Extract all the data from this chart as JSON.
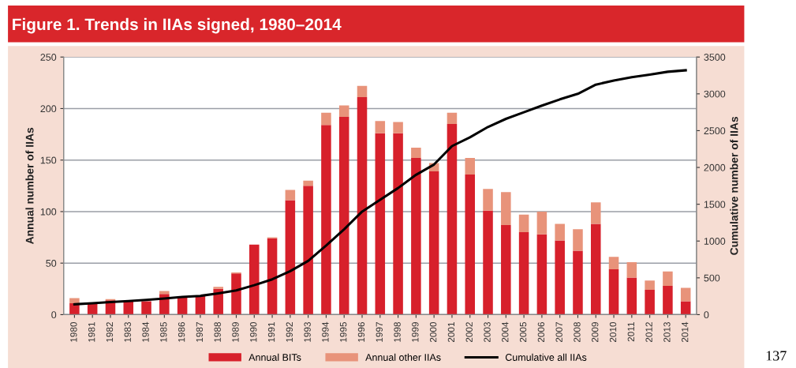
{
  "chart_data": {
    "type": "bar",
    "title": "Figure 1. Trends in IIAs signed, 1980–2014",
    "categories": [
      "1980",
      "1981",
      "1982",
      "1983",
      "1984",
      "1985",
      "1986",
      "1987",
      "1988",
      "1989",
      "1990",
      "1991",
      "1992",
      "1993",
      "1994",
      "1995",
      "1996",
      "1997",
      "1998",
      "1999",
      "2000",
      "2001",
      "2002",
      "2003",
      "2004",
      "2005",
      "2006",
      "2007",
      "2008",
      "2009",
      "2010",
      "2011",
      "2012",
      "2013",
      "2014"
    ],
    "stacked": true,
    "series": [
      {
        "name": "Annual BITs",
        "color": "#d7202b",
        "values": [
          11,
          11,
          14,
          13,
          13,
          20,
          17,
          18,
          25,
          40,
          68,
          74,
          111,
          125,
          184,
          192,
          211,
          176,
          176,
          152,
          139,
          185,
          136,
          101,
          87,
          80,
          78,
          72,
          62,
          88,
          44,
          36,
          24,
          28,
          13
        ]
      },
      {
        "name": "Annual other IIAs",
        "color": "#e8937a",
        "values": [
          5,
          null,
          1,
          0,
          0,
          3,
          1,
          0,
          2,
          1,
          0,
          1,
          10,
          5,
          12,
          11,
          11,
          12,
          11,
          10,
          8,
          11,
          16,
          21,
          32,
          17,
          22,
          16,
          21,
          21,
          12,
          15,
          9,
          14,
          13
        ]
      },
      {
        "name": "Cumulative all IIAs",
        "type": "line",
        "axis": "y2",
        "color": "#000000",
        "values": [
          140,
          155,
          170,
          185,
          200,
          220,
          240,
          255,
          290,
          330,
          400,
          480,
          590,
          730,
          940,
          1160,
          1400,
          1560,
          1720,
          1900,
          2040,
          2290,
          2410,
          2550,
          2660,
          2750,
          2840,
          2925,
          3000,
          3125,
          3180,
          3225,
          3260,
          3300,
          3320
        ]
      }
    ],
    "ylabel": "Annual number of IIAs",
    "y2label": "Cumulative number of IIAs",
    "ylim": [
      0,
      250
    ],
    "yticks": [
      0,
      50,
      100,
      150,
      200,
      250
    ],
    "y2lim": [
      0,
      3500
    ],
    "y2ticks": [
      0,
      500,
      1000,
      1500,
      2000,
      2500,
      3000,
      3500
    ],
    "grid": "y",
    "legend": "bottom",
    "marker": "none",
    "line_style": "solid",
    "annotations": [
      "137"
    ]
  }
}
